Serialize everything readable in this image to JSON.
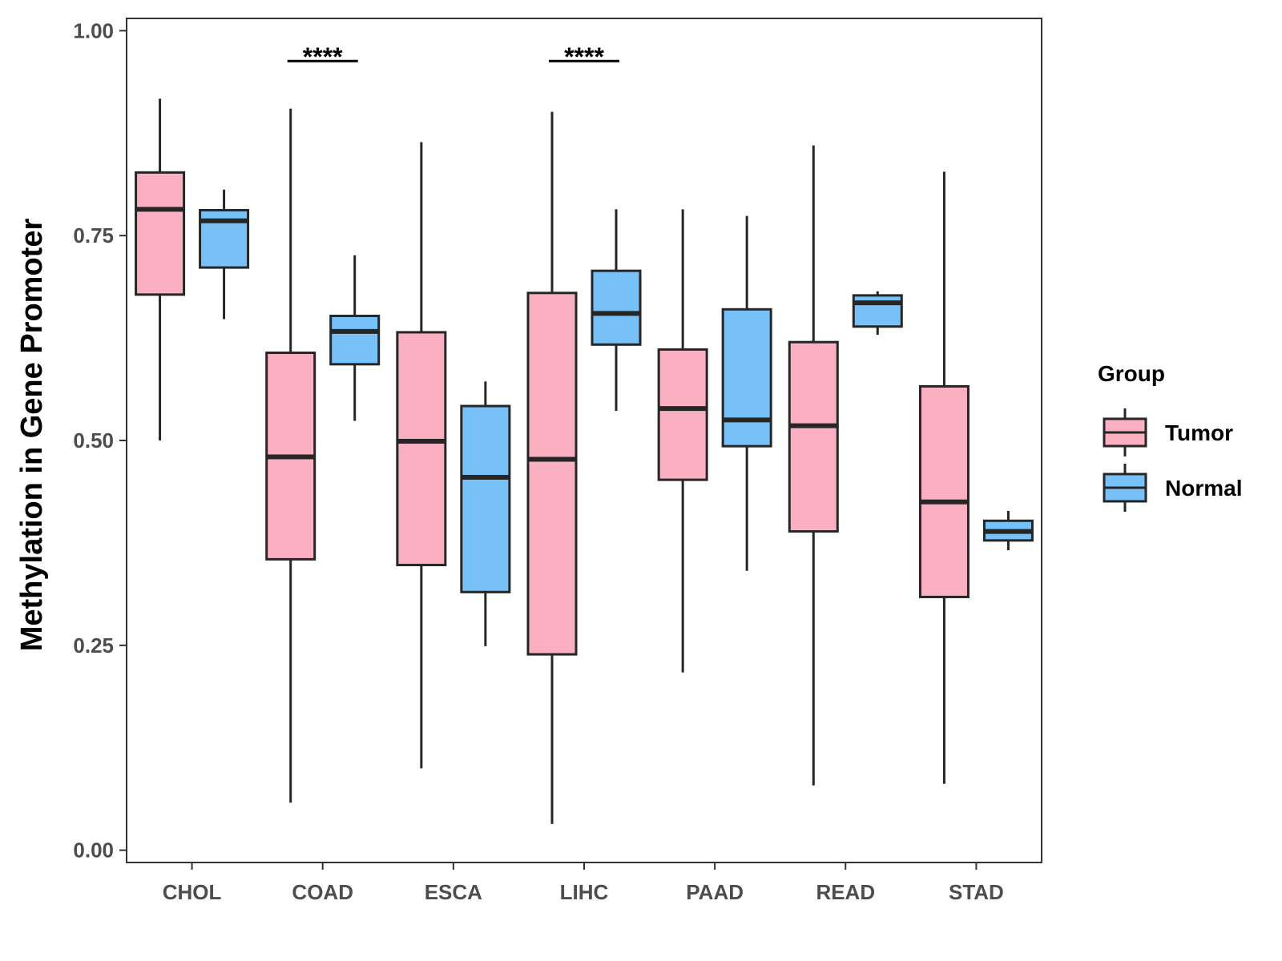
{
  "chart_data": {
    "type": "boxplot",
    "title": "",
    "xlabel": "",
    "ylabel": "Methylation in Gene Promoter",
    "ylim": [
      -0.015,
      1.015
    ],
    "yticks": [
      "0.00",
      "0.25",
      "0.50",
      "0.75",
      "1.00"
    ],
    "ytick_values": [
      0,
      0.25,
      0.5,
      0.75,
      1.0
    ],
    "categories": [
      "CHOL",
      "COAD",
      "ESCA",
      "LIHC",
      "PAAD",
      "READ",
      "STAD"
    ],
    "legend": {
      "title": "Group",
      "placement": "right",
      "entries": [
        "Tumor",
        "Normal"
      ]
    },
    "colors": {
      "Tumor": "#fbb0c2",
      "Normal": "#77c1f8",
      "outline": "#262626"
    },
    "series": [
      {
        "name": "Tumor",
        "boxes": [
          {
            "min": 0.5,
            "q1": 0.678,
            "median": 0.782,
            "q3": 0.827,
            "max": 0.917
          },
          {
            "min": 0.058,
            "q1": 0.355,
            "median": 0.48,
            "q3": 0.607,
            "max": 0.905
          },
          {
            "min": 0.1,
            "q1": 0.348,
            "median": 0.499,
            "q3": 0.632,
            "max": 0.864
          },
          {
            "min": 0.032,
            "q1": 0.239,
            "median": 0.477,
            "q3": 0.68,
            "max": 0.901
          },
          {
            "min": 0.217,
            "q1": 0.452,
            "median": 0.539,
            "q3": 0.611,
            "max": 0.782
          },
          {
            "min": 0.079,
            "q1": 0.389,
            "median": 0.518,
            "q3": 0.62,
            "max": 0.86
          },
          {
            "min": 0.081,
            "q1": 0.309,
            "median": 0.425,
            "q3": 0.566,
            "max": 0.828
          }
        ]
      },
      {
        "name": "Normal",
        "boxes": [
          {
            "min": 0.648,
            "q1": 0.711,
            "median": 0.768,
            "q3": 0.781,
            "max": 0.806
          },
          {
            "min": 0.524,
            "q1": 0.593,
            "median": 0.633,
            "q3": 0.652,
            "max": 0.726
          },
          {
            "min": 0.249,
            "q1": 0.315,
            "median": 0.455,
            "q3": 0.542,
            "max": 0.572
          },
          {
            "min": 0.536,
            "q1": 0.617,
            "median": 0.655,
            "q3": 0.707,
            "max": 0.782
          },
          {
            "min": 0.341,
            "q1": 0.493,
            "median": 0.525,
            "q3": 0.66,
            "max": 0.774
          },
          {
            "min": 0.629,
            "q1": 0.639,
            "median": 0.668,
            "q3": 0.677,
            "max": 0.682
          },
          {
            "min": 0.366,
            "q1": 0.378,
            "median": 0.389,
            "q3": 0.402,
            "max": 0.414
          }
        ]
      }
    ],
    "annotations": [
      {
        "category": "COAD",
        "text": "****",
        "y": 0.963
      },
      {
        "category": "LIHC",
        "text": "****",
        "y": 0.963
      }
    ]
  }
}
